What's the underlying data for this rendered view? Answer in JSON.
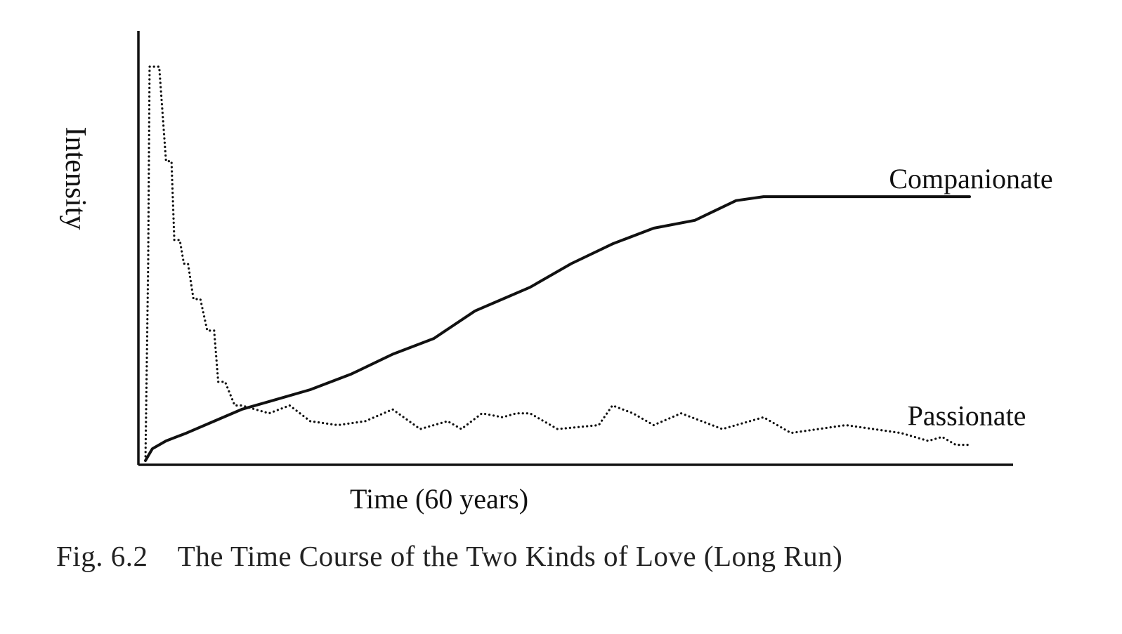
{
  "chart_data": {
    "type": "line",
    "ylabel": "Intensity",
    "xlabel": "Time (60 years)",
    "caption": "Fig. 6.2    The Time Course of the Two Kinds of Love (Long Run)",
    "xlim": [
      0,
      60
    ],
    "ylim": [
      0,
      100
    ],
    "grid": false,
    "series": [
      {
        "name": "Companionate",
        "style": "solid",
        "label_position": "end-above",
        "x": [
          0,
          0.5,
          1.5,
          3,
          5,
          7,
          9,
          12,
          15,
          18,
          21,
          24,
          26,
          28,
          31,
          34,
          37,
          40,
          43,
          45,
          48,
          51,
          54,
          57,
          60
        ],
        "y": [
          0,
          3,
          5,
          7,
          10,
          13,
          15,
          18,
          22,
          27,
          31,
          38,
          41,
          44,
          50,
          55,
          59,
          61,
          66,
          67,
          67,
          67,
          67,
          67,
          67
        ]
      },
      {
        "name": "Passionate",
        "style": "dotted",
        "label_position": "end-above",
        "x": [
          0,
          0.2,
          0.3,
          1.0,
          1.5,
          1.9,
          2.1,
          2.5,
          2.8,
          3.1,
          3.5,
          4.0,
          4.5,
          5.0,
          5.3,
          5.8,
          6.5,
          7.0,
          9.0,
          10.5,
          12.0,
          14.0,
          16.0,
          18.0,
          20.0,
          22.0,
          23.0,
          24.5,
          26.0,
          27.0,
          28.0,
          30.0,
          33.0,
          34.0,
          35.5,
          37.0,
          39.0,
          42.0,
          45.0,
          47.0,
          49.0,
          51.0,
          53.0,
          55.0,
          57.0,
          58.0,
          59.0,
          60.0
        ],
        "y": [
          0,
          50,
          100,
          100,
          76,
          76,
          56,
          56,
          50,
          50,
          41,
          41,
          33,
          33,
          20,
          20,
          14,
          14,
          12,
          14,
          10,
          9,
          10,
          13,
          8,
          10,
          8,
          12,
          11,
          12,
          12,
          8,
          9,
          14,
          12,
          9,
          12,
          8,
          11,
          7,
          8,
          9,
          8,
          7,
          5,
          6,
          4,
          4
        ]
      }
    ]
  }
}
